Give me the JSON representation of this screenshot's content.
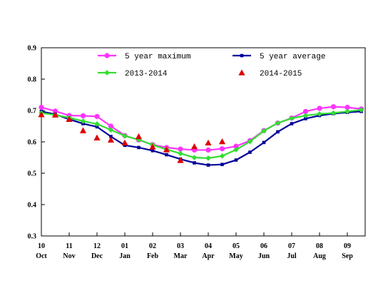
{
  "chart_data": {
    "type": "line",
    "title": "",
    "xlabel": "",
    "ylabel": "",
    "ylim": [
      0.3,
      0.9
    ],
    "yticks": [
      "0.3",
      "0.4",
      "0.5",
      "0.6",
      "0.7",
      "0.8",
      "0.9"
    ],
    "x_ticks": [
      {
        "num": "10",
        "month": "Oct"
      },
      {
        "num": "11",
        "month": "Nov"
      },
      {
        "num": "12",
        "month": "Dec"
      },
      {
        "num": "01",
        "month": "Jan"
      },
      {
        "num": "02",
        "month": "Feb"
      },
      {
        "num": "03",
        "month": "Mar"
      },
      {
        "num": "04",
        "month": "Apr"
      },
      {
        "num": "05",
        "month": "May"
      },
      {
        "num": "06",
        "month": "Jun"
      },
      {
        "num": "07",
        "month": "Jul"
      },
      {
        "num": "08",
        "month": "Aug"
      },
      {
        "num": "09",
        "month": "Sep"
      }
    ],
    "x_range": [
      0,
      11.5
    ],
    "grid": false,
    "legend_placement": "top",
    "series": [
      {
        "name": "5 year maximum",
        "color": "#ff33ff",
        "marker": "circle",
        "x": [
          0,
          0.5,
          1,
          1.5,
          2,
          2.5,
          3,
          3.5,
          4,
          4.5,
          5,
          5.5,
          6,
          6.5,
          7,
          7.5,
          8,
          8.5,
          9,
          9.5,
          10,
          10.5,
          11,
          11.5
        ],
        "values": [
          0.71,
          0.698,
          0.684,
          0.683,
          0.681,
          0.65,
          0.62,
          0.606,
          0.591,
          0.582,
          0.577,
          0.574,
          0.574,
          0.578,
          0.586,
          0.604,
          0.636,
          0.66,
          0.676,
          0.697,
          0.707,
          0.712,
          0.71,
          0.705
        ]
      },
      {
        "name": "5 year average",
        "color": "#000099",
        "marker": "square",
        "x": [
          0,
          0.5,
          1,
          1.5,
          2,
          2.5,
          3,
          3.5,
          4,
          4.5,
          5,
          5.5,
          6,
          6.5,
          7,
          7.5,
          8,
          8.5,
          9,
          9.5,
          10,
          10.5,
          11,
          11.5
        ],
        "values": [
          0.697,
          0.688,
          0.672,
          0.658,
          0.648,
          0.617,
          0.589,
          0.582,
          0.572,
          0.559,
          0.545,
          0.533,
          0.526,
          0.528,
          0.542,
          0.567,
          0.598,
          0.632,
          0.658,
          0.674,
          0.684,
          0.69,
          0.694,
          0.697
        ]
      },
      {
        "name": "2013-2014",
        "color": "#33dd33",
        "marker": "diamond",
        "x": [
          0,
          0.5,
          1,
          1.5,
          2,
          2.5,
          3,
          3.5,
          4,
          4.5,
          5,
          5.5,
          6,
          6.5,
          7,
          7.5,
          8,
          8.5,
          9,
          9.5,
          10,
          10.5,
          11,
          11.5
        ],
        "values": [
          0.692,
          0.686,
          0.677,
          0.666,
          0.657,
          0.638,
          0.619,
          0.607,
          0.59,
          0.576,
          0.563,
          0.55,
          0.548,
          0.555,
          0.575,
          0.601,
          0.635,
          0.66,
          0.675,
          0.684,
          0.689,
          0.692,
          0.697,
          0.702
        ]
      },
      {
        "name": "2014-2015",
        "color": "#dd0000",
        "marker": "triangle",
        "line": false,
        "x": [
          0,
          0.5,
          1,
          1.5,
          2,
          2.5,
          3,
          3.5,
          4,
          4.5,
          5,
          5.5,
          6,
          6.5
        ],
        "values": [
          0.687,
          0.686,
          0.672,
          0.636,
          0.613,
          0.606,
          0.597,
          0.617,
          0.584,
          0.575,
          0.541,
          0.585,
          0.597,
          0.601
        ]
      }
    ]
  }
}
